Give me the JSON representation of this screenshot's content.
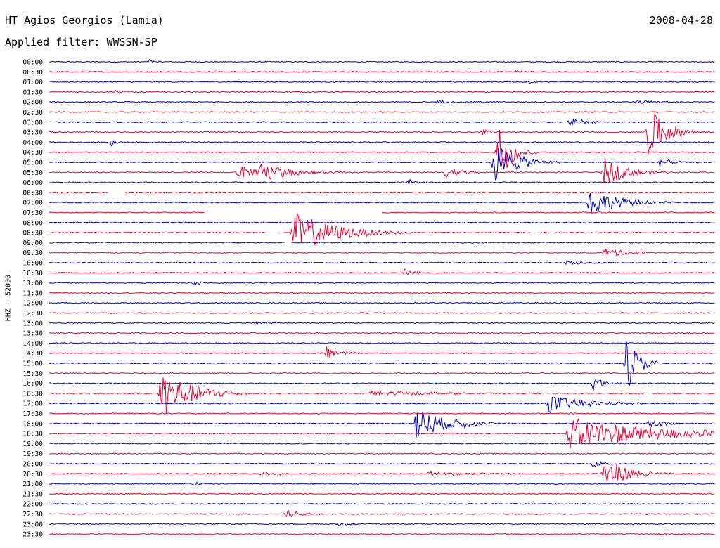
{
  "header": {
    "station": "HT Agios Georgios (Lamia)",
    "date": "2008-04-28",
    "filter_label": "Applied filter:",
    "filter_value": "WWSSN-SP"
  },
  "chart_data": {
    "type": "line",
    "title": "HT Agios Georgios (Lamia)",
    "xlabel": "",
    "ylabel": "HHZ - 52000",
    "ytick_labels": [
      "00:00",
      "00:30",
      "01:00",
      "01:30",
      "02:00",
      "02:30",
      "03:00",
      "03:30",
      "04:00",
      "04:30",
      "05:00",
      "05:30",
      "06:00",
      "06:30",
      "07:00",
      "07:30",
      "08:00",
      "08:30",
      "09:00",
      "09:30",
      "10:00",
      "10:30",
      "11:00",
      "11:30",
      "12:00",
      "12:30",
      "13:00",
      "13:30",
      "14:00",
      "14:30",
      "15:00",
      "15:30",
      "16:00",
      "16:30",
      "17:00",
      "17:30",
      "18:00",
      "18:30",
      "19:00",
      "19:30",
      "20:00",
      "20:30",
      "21:00",
      "21:30",
      "22:00",
      "22:30",
      "23:00",
      "23:30"
    ],
    "trace_minutes": 30,
    "colors": {
      "even": "#0000cc",
      "odd": "#ee0033"
    },
    "grid": false,
    "events": [
      {
        "trace": 10,
        "minute": 20.0,
        "amp": 2.2,
        "dur": 1.0
      },
      {
        "trace": 11,
        "minute": 8.5,
        "amp": 0.7,
        "dur": 1.0
      },
      {
        "trace": 11,
        "minute": 9.5,
        "amp": 0.8,
        "dur": 1.5
      },
      {
        "trace": 11,
        "minute": 17.8,
        "amp": 0.6,
        "dur": 0.8
      },
      {
        "trace": 11,
        "minute": 25.0,
        "amp": 1.4,
        "dur": 1.0
      },
      {
        "trace": 6,
        "minute": 23.4,
        "amp": 0.4,
        "dur": 0.8
      },
      {
        "trace": 7,
        "minute": 27.0,
        "amp": 2.6,
        "dur": 0.8
      },
      {
        "trace": 14,
        "minute": 24.3,
        "amp": 1.4,
        "dur": 1.3
      },
      {
        "trace": 17,
        "minute": 11.0,
        "amp": 2.1,
        "dur": 1.8
      },
      {
        "trace": 19,
        "minute": 25.0,
        "amp": 0.5,
        "dur": 1.0
      },
      {
        "trace": 20,
        "minute": 23.3,
        "amp": 0.3,
        "dur": 0.8
      },
      {
        "trace": 21,
        "minute": 16.0,
        "amp": 0.4,
        "dur": 0.5
      },
      {
        "trace": 29,
        "minute": 12.5,
        "amp": 0.7,
        "dur": 0.6
      },
      {
        "trace": 30,
        "minute": 26.0,
        "amp": 3.0,
        "dur": 0.5
      },
      {
        "trace": 32,
        "minute": 24.5,
        "amp": 0.7,
        "dur": 0.5
      },
      {
        "trace": 33,
        "minute": 5.0,
        "amp": 2.6,
        "dur": 1.3
      },
      {
        "trace": 33,
        "minute": 14.5,
        "amp": 0.3,
        "dur": 2.5
      },
      {
        "trace": 34,
        "minute": 22.5,
        "amp": 0.9,
        "dur": 1.5
      },
      {
        "trace": 36,
        "minute": 16.5,
        "amp": 1.8,
        "dur": 1.2
      },
      {
        "trace": 36,
        "minute": 18.5,
        "amp": 0.3,
        "dur": 0.8
      },
      {
        "trace": 36,
        "minute": 27.0,
        "amp": 0.5,
        "dur": 0.8
      },
      {
        "trace": 37,
        "minute": 23.4,
        "amp": 1.6,
        "dur": 4.0
      },
      {
        "trace": 40,
        "minute": 24.5,
        "amp": 0.4,
        "dur": 0.5
      },
      {
        "trace": 41,
        "minute": 25.0,
        "amp": 1.7,
        "dur": 1.0
      },
      {
        "trace": 41,
        "minute": 17.0,
        "amp": 0.3,
        "dur": 1.5
      },
      {
        "trace": 41,
        "minute": 9.5,
        "amp": 0.2,
        "dur": 1.0
      },
      {
        "trace": 45,
        "minute": 10.7,
        "amp": 0.5,
        "dur": 0.5
      },
      {
        "trace": 46,
        "minute": 13.0,
        "amp": 0.2,
        "dur": 0.6
      },
      {
        "trace": 47,
        "minute": 27.5,
        "amp": 0.3,
        "dur": 0.4
      },
      {
        "trace": 0,
        "minute": 4.5,
        "amp": 0.3,
        "dur": 0.2
      },
      {
        "trace": 1,
        "minute": 21.0,
        "amp": 0.2,
        "dur": 0.4
      },
      {
        "trace": 2,
        "minute": 21.5,
        "amp": 0.2,
        "dur": 0.3
      },
      {
        "trace": 3,
        "minute": 3.0,
        "amp": 0.15,
        "dur": 0.8
      },
      {
        "trace": 4,
        "minute": 17.5,
        "amp": 0.2,
        "dur": 1.0
      },
      {
        "trace": 4,
        "minute": 26.5,
        "amp": 0.2,
        "dur": 1.0
      },
      {
        "trace": 7,
        "minute": 19.5,
        "amp": 0.3,
        "dur": 0.5
      },
      {
        "trace": 8,
        "minute": 2.7,
        "amp": 0.7,
        "dur": 0.2
      },
      {
        "trace": 9,
        "minute": 20.2,
        "amp": 3.2,
        "dur": 0.6
      },
      {
        "trace": 10,
        "minute": 27.5,
        "amp": 0.4,
        "dur": 0.6
      },
      {
        "trace": 12,
        "minute": 16.2,
        "amp": 0.3,
        "dur": 0.4
      },
      {
        "trace": 22,
        "minute": 6.5,
        "amp": 0.2,
        "dur": 0.6
      },
      {
        "trace": 26,
        "minute": 9.3,
        "amp": 0.2,
        "dur": 0.6
      },
      {
        "trace": 42,
        "minute": 6.5,
        "amp": 0.15,
        "dur": 0.6
      }
    ],
    "gaps": [
      {
        "trace": 13,
        "from": 2.7,
        "to": 3.4
      },
      {
        "trace": 15,
        "from": 7.0,
        "to": 15.0
      },
      {
        "trace": 17,
        "from": 9.8,
        "to": 10.3
      },
      {
        "trace": 17,
        "from": 21.7,
        "to": 22.0
      },
      {
        "trace": 18,
        "from": 10.6,
        "to": 10.9
      }
    ]
  }
}
